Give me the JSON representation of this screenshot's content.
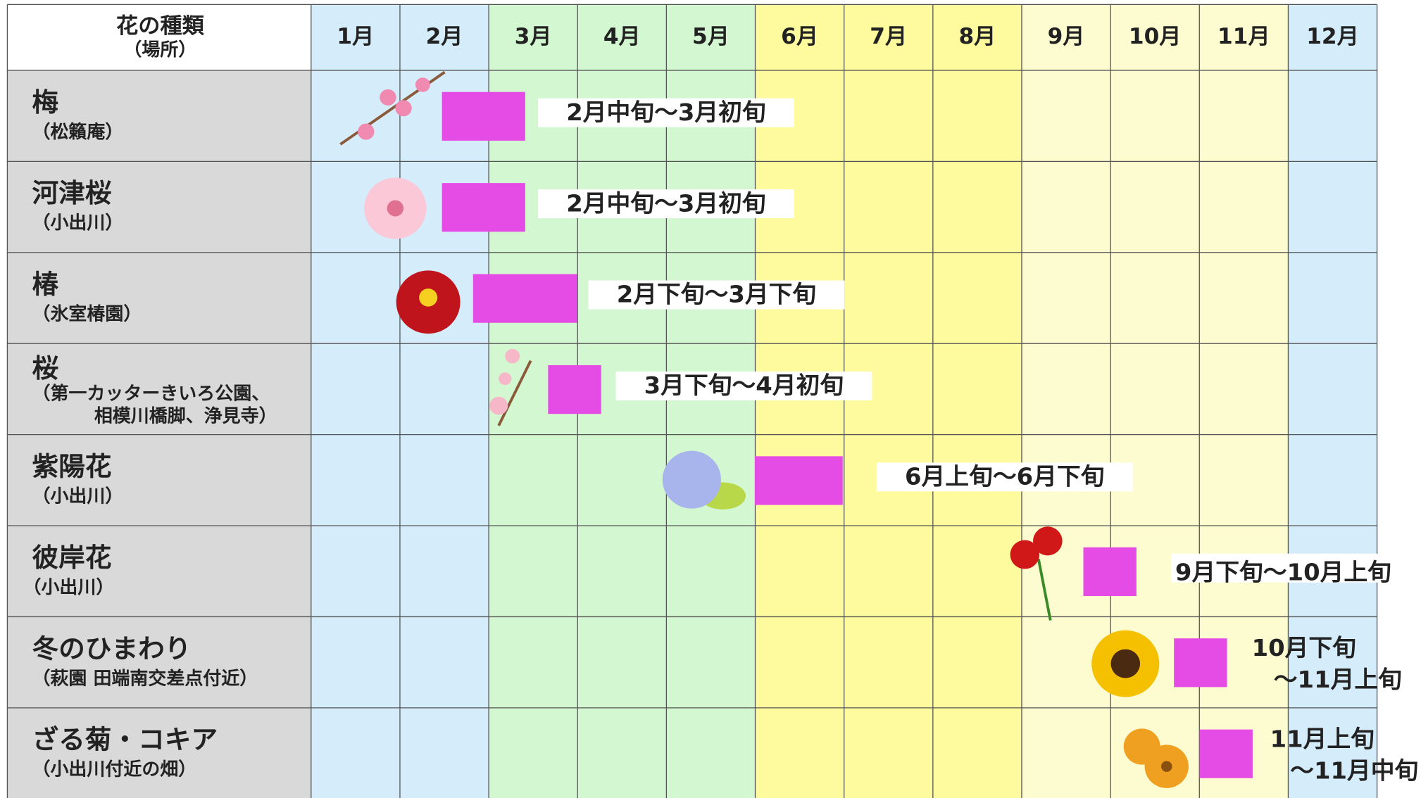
{
  "header": {
    "title": "花の種類",
    "subtitle": "（場所）"
  },
  "months": [
    "1月",
    "2月",
    "3月",
    "4月",
    "5月",
    "6月",
    "7月",
    "8月",
    "9月",
    "10月",
    "11月",
    "12月"
  ],
  "rows": [
    {
      "name": "梅",
      "place": [
        "（松籟庵）"
      ],
      "period": [
        "2月中旬～3月初旬"
      ]
    },
    {
      "name": "河津桜",
      "place": [
        "（小出川）"
      ],
      "period": [
        "2月中旬～3月初旬"
      ]
    },
    {
      "name": "椿",
      "place": [
        "（氷室椿園）"
      ],
      "period": [
        "2月下旬～3月下旬"
      ]
    },
    {
      "name": "桜",
      "place": [
        "（第一カッターきいろ公園、",
        "相模川橋脚、浄見寺）"
      ],
      "period": [
        "3月下旬～4月初旬"
      ]
    },
    {
      "name": "紫陽花",
      "place": [
        "（小出川）"
      ],
      "period": [
        "6月上旬～6月下旬"
      ]
    },
    {
      "name": "彼岸花",
      "place": [
        "（小出川）"
      ],
      "period": [
        "9月下旬～10月上旬"
      ]
    },
    {
      "name": "冬のひまわり",
      "place": [
        "（萩園 田端南交差点付近）"
      ],
      "period": [
        "10月下旬",
        "～11月上旬"
      ]
    },
    {
      "name": "ざる菊・コキア",
      "place": [
        "（小出川付近の畑）"
      ],
      "period": [
        "11月上旬",
        "～11月中旬"
      ]
    }
  ]
}
